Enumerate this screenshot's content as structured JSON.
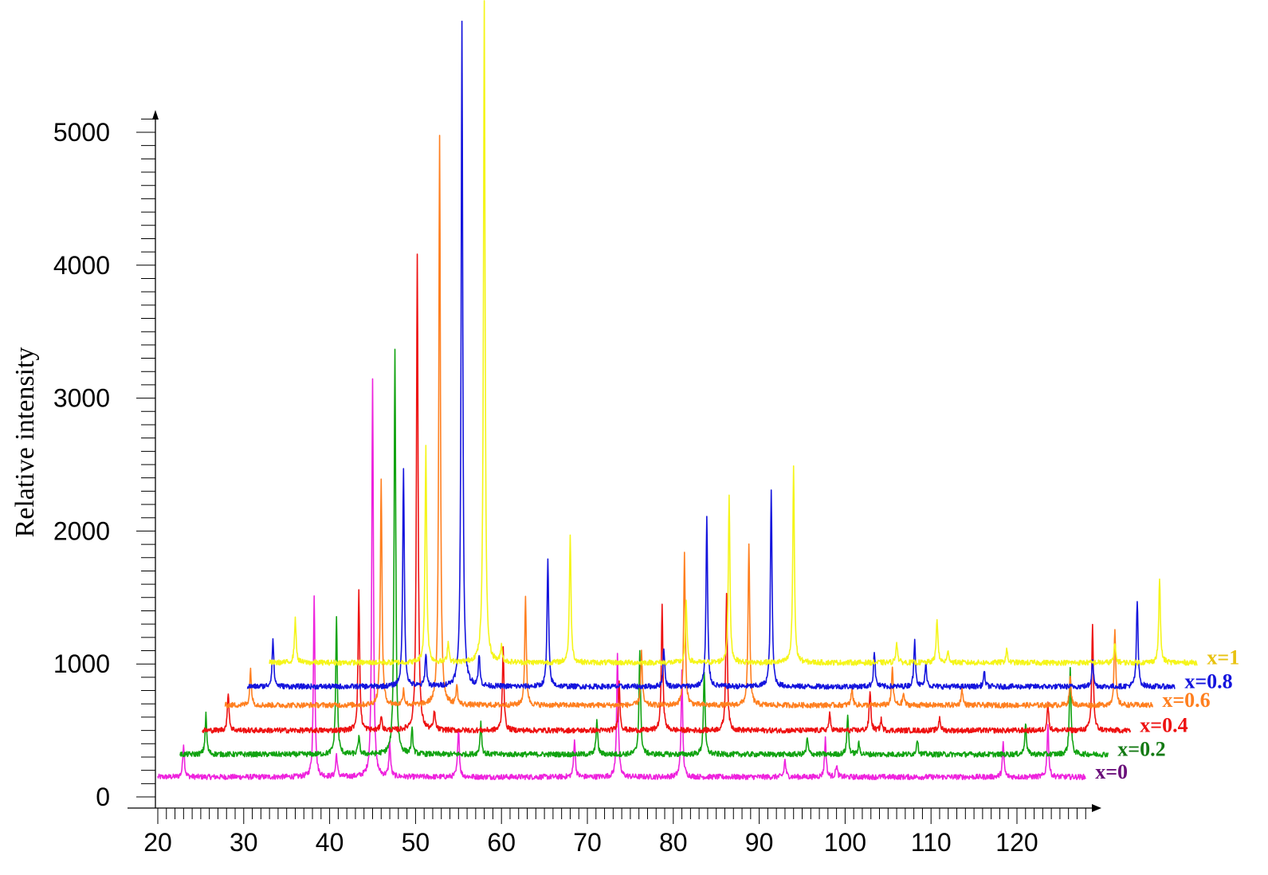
{
  "chart_data": {
    "type": "line",
    "title": "",
    "xlabel": "",
    "ylabel": "Relative intensity",
    "xlim": [
      20,
      128
    ],
    "ylim": [
      0,
      5000
    ],
    "xticks": [
      "20",
      "30",
      "40",
      "50",
      "60",
      "70",
      "80",
      "90",
      "100",
      "110",
      "120"
    ],
    "yticks": [
      "0",
      "1000",
      "2000",
      "3000",
      "4000",
      "5000"
    ],
    "grid": false,
    "offset_per_series_x_deg": 2.6,
    "series": [
      {
        "name": "x=0",
        "color": "#ee22dd",
        "label_color": "#6a0f7a",
        "baseline": 150,
        "peaks": [
          [
            23.0,
            250
          ],
          [
            38.2,
            1370
          ],
          [
            40.8,
            170
          ],
          [
            45.0,
            2990
          ],
          [
            47.0,
            250
          ],
          [
            55.0,
            380
          ],
          [
            68.5,
            290
          ],
          [
            73.5,
            940
          ],
          [
            81.0,
            790
          ],
          [
            93.0,
            130
          ],
          [
            97.7,
            290
          ],
          [
            99.0,
            90
          ],
          [
            118.4,
            250
          ],
          [
            123.6,
            400
          ]
        ]
      },
      {
        "name": "x=0.2",
        "color": "#11a311",
        "label_color": "#147a14",
        "baseline": 320,
        "peaks": [
          [
            23.0,
            300
          ],
          [
            38.2,
            1040
          ],
          [
            40.8,
            130
          ],
          [
            45.0,
            3060
          ],
          [
            47.0,
            180
          ],
          [
            55.0,
            240
          ],
          [
            68.5,
            260
          ],
          [
            73.5,
            790
          ],
          [
            81.0,
            630
          ],
          [
            93.0,
            120
          ],
          [
            97.7,
            300
          ],
          [
            99.0,
            80
          ],
          [
            105.8,
            120
          ],
          [
            118.4,
            240
          ],
          [
            123.6,
            670
          ]
        ]
      },
      {
        "name": "x=0.4",
        "color": "#ee1111",
        "label_color": "#ee1111",
        "baseline": 500,
        "peaks": [
          [
            23.0,
            290
          ],
          [
            38.2,
            1040
          ],
          [
            40.8,
            110
          ],
          [
            45.0,
            3590
          ],
          [
            47.0,
            140
          ],
          [
            55.0,
            630
          ],
          [
            68.5,
            360
          ],
          [
            73.5,
            930
          ],
          [
            81.0,
            1040
          ],
          [
            93.0,
            120
          ],
          [
            97.7,
            300
          ],
          [
            99.0,
            80
          ],
          [
            105.8,
            100
          ],
          [
            118.4,
            200
          ],
          [
            123.6,
            800
          ]
        ]
      },
      {
        "name": "x=0.6",
        "color": "#ff7f1f",
        "label_color": "#ff7f1f",
        "baseline": 690,
        "peaks": [
          [
            23.0,
            270
          ],
          [
            38.2,
            1700
          ],
          [
            40.8,
            120
          ],
          [
            45.0,
            4290
          ],
          [
            47.0,
            140
          ],
          [
            55.0,
            800
          ],
          [
            68.5,
            400
          ],
          [
            73.5,
            1130
          ],
          [
            81.0,
            1230
          ],
          [
            93.0,
            130
          ],
          [
            97.7,
            280
          ],
          [
            99.0,
            90
          ],
          [
            105.8,
            130
          ],
          [
            118.4,
            210
          ],
          [
            123.6,
            570
          ]
        ]
      },
      {
        "name": "x=0.8",
        "color": "#1414dd",
        "label_color": "#1414dd",
        "baseline": 830,
        "peaks": [
          [
            23.0,
            360
          ],
          [
            38.2,
            1650
          ],
          [
            40.8,
            250
          ],
          [
            45.0,
            5000
          ],
          [
            47.0,
            230
          ],
          [
            55.0,
            960
          ],
          [
            68.5,
            300
          ],
          [
            73.5,
            1270
          ],
          [
            81.0,
            1480
          ],
          [
            93.0,
            270
          ],
          [
            97.7,
            360
          ],
          [
            99.0,
            170
          ],
          [
            105.8,
            110
          ],
          [
            118.4,
            210
          ],
          [
            123.6,
            650
          ]
        ]
      },
      {
        "name": "x=1",
        "color": "#f5f51a",
        "label_color": "#e8c210",
        "baseline": 1010,
        "peaks": [
          [
            23.0,
            340
          ],
          [
            38.2,
            1630
          ],
          [
            40.8,
            160
          ],
          [
            45.0,
            4990
          ],
          [
            47.0,
            120
          ],
          [
            55.0,
            950
          ],
          [
            68.5,
            460
          ],
          [
            73.5,
            1260
          ],
          [
            81.0,
            1480
          ],
          [
            93.0,
            160
          ],
          [
            97.7,
            340
          ],
          [
            99.0,
            90
          ],
          [
            105.8,
            100
          ],
          [
            118.4,
            140
          ],
          [
            123.6,
            640
          ]
        ]
      }
    ]
  }
}
